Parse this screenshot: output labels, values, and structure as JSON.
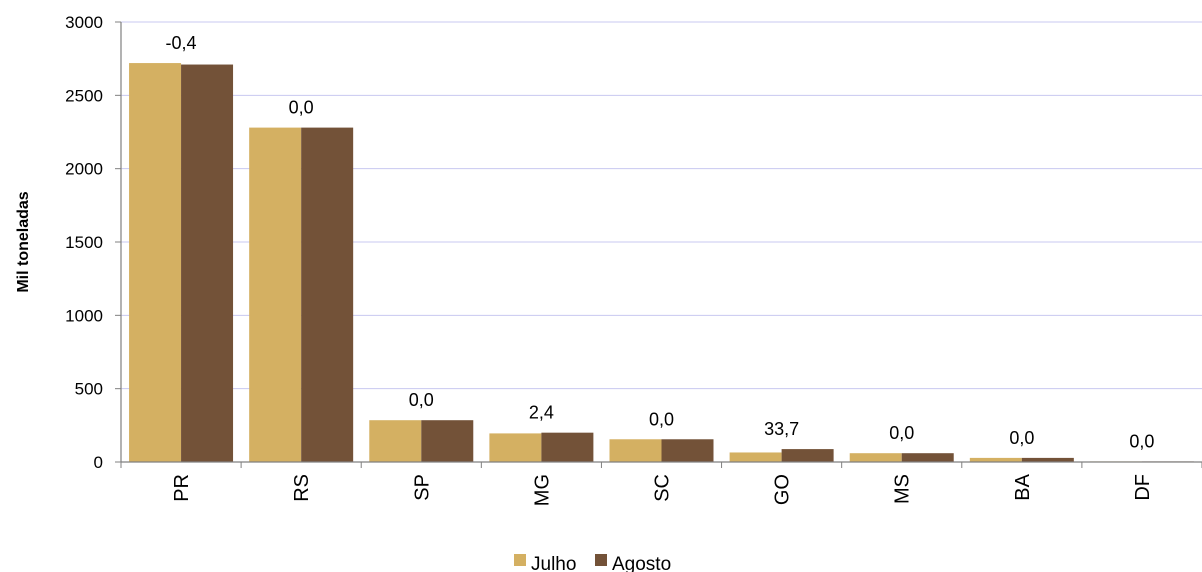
{
  "chart_data": {
    "type": "bar",
    "title": "",
    "xlabel": "",
    "ylabel": "Mil toneladas",
    "ylim": [
      0,
      3000
    ],
    "yticks": [
      0,
      500,
      1000,
      1500,
      2000,
      2500,
      3000
    ],
    "grid": true,
    "legend_position": "bottom",
    "categories": [
      "PR",
      "RS",
      "SP",
      "MG",
      "SC",
      "GO",
      "MS",
      "BA",
      "DF"
    ],
    "series": [
      {
        "name": "Julho",
        "color": "#D4B062",
        "values": [
          2720,
          2280,
          285,
          195,
          155,
          65,
          60,
          28,
          3
        ]
      },
      {
        "name": "Agosto",
        "color": "#735238",
        "values": [
          2710,
          2280,
          285,
          200,
          155,
          88,
          60,
          28,
          3
        ]
      }
    ],
    "data_labels": [
      "-0,4",
      "0,0",
      "0,0",
      "2,4",
      "0,0",
      "33,7",
      "0,0",
      "0,0",
      "0,0"
    ],
    "grid_color": "#C8C8F0"
  }
}
